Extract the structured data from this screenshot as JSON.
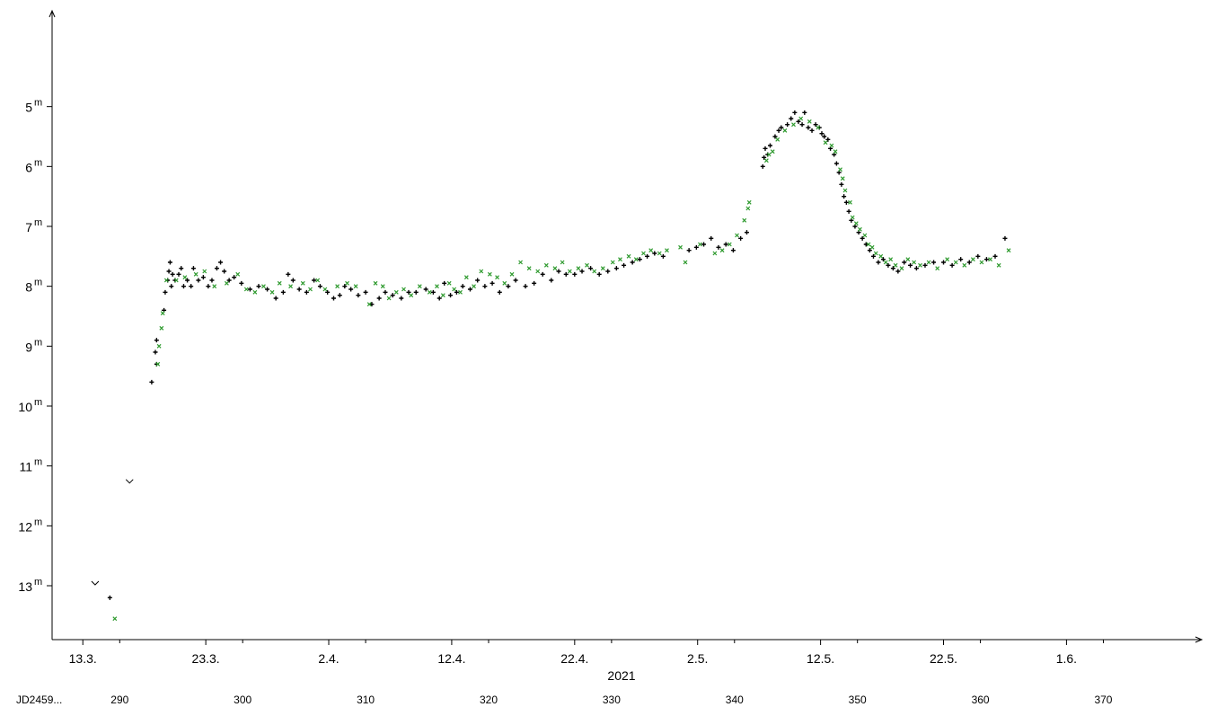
{
  "chart_data": {
    "type": "scatter",
    "title": "",
    "xlabel": "",
    "ylabel": "",
    "x_unit": "JD 2459xxx (day)",
    "x_range": [
      284.5,
      378.0
    ],
    "y_range_magnitude": [
      13.9,
      3.4
    ],
    "y_inverted": true,
    "grid": false,
    "year_label": "2021",
    "jd_prefix_label": "JD2459...",
    "date_ticks": [
      {
        "jd": 287,
        "label": "13.3."
      },
      {
        "jd": 297,
        "label": "23.3."
      },
      {
        "jd": 307,
        "label": "2.4."
      },
      {
        "jd": 317,
        "label": "12.4."
      },
      {
        "jd": 327,
        "label": "22.4."
      },
      {
        "jd": 337,
        "label": "2.5."
      },
      {
        "jd": 347,
        "label": "12.5."
      },
      {
        "jd": 357,
        "label": "22.5."
      },
      {
        "jd": 367,
        "label": "1.6."
      }
    ],
    "jd_ticks": [
      {
        "jd": 290,
        "label": "290"
      },
      {
        "jd": 300,
        "label": "300"
      },
      {
        "jd": 310,
        "label": "310"
      },
      {
        "jd": 320,
        "label": "320"
      },
      {
        "jd": 330,
        "label": "330"
      },
      {
        "jd": 340,
        "label": "340"
      },
      {
        "jd": 350,
        "label": "350"
      },
      {
        "jd": 360,
        "label": "360"
      },
      {
        "jd": 370,
        "label": "370"
      }
    ],
    "y_ticks": [
      {
        "mag": 5,
        "label": "5",
        "suffix": "m"
      },
      {
        "mag": 6,
        "label": "6",
        "suffix": "m"
      },
      {
        "mag": 7,
        "label": "7",
        "suffix": "m"
      },
      {
        "mag": 8,
        "label": "8",
        "suffix": "m"
      },
      {
        "mag": 9,
        "label": "9",
        "suffix": "m"
      },
      {
        "mag": 10,
        "label": "10",
        "suffix": "m"
      },
      {
        "mag": 11,
        "label": "11",
        "suffix": "m"
      },
      {
        "mag": 12,
        "label": "12",
        "suffix": "m"
      },
      {
        "mag": 13,
        "label": "13",
        "suffix": "m"
      }
    ],
    "colors": {
      "visual": "#000000",
      "other": "#2e9a2e"
    },
    "series": [
      {
        "marker": "v",
        "color": "#000000",
        "points": [
          [
            288.0,
            12.97
          ],
          [
            290.8,
            11.27
          ]
        ]
      },
      {
        "marker": "plus",
        "color": "#000000",
        "points": [
          [
            289.2,
            13.2
          ],
          [
            292.6,
            9.6
          ],
          [
            292.9,
            9.1
          ],
          [
            293.0,
            8.9
          ],
          [
            293.0,
            9.3
          ],
          [
            293.6,
            8.4
          ],
          [
            293.7,
            8.1
          ],
          [
            293.9,
            7.9
          ],
          [
            294.0,
            7.75
          ],
          [
            294.1,
            7.6
          ],
          [
            294.2,
            8.0
          ],
          [
            294.3,
            7.8
          ],
          [
            294.5,
            7.9
          ],
          [
            294.8,
            7.8
          ],
          [
            295.0,
            7.7
          ],
          [
            295.2,
            8.0
          ],
          [
            295.5,
            7.9
          ],
          [
            295.8,
            8.0
          ],
          [
            296.0,
            7.7
          ],
          [
            296.4,
            7.9
          ],
          [
            296.8,
            7.85
          ],
          [
            297.2,
            8.0
          ],
          [
            297.5,
            7.9
          ],
          [
            297.9,
            7.7
          ],
          [
            298.2,
            7.6
          ],
          [
            298.5,
            7.75
          ],
          [
            298.9,
            7.9
          ],
          [
            299.3,
            7.85
          ],
          [
            299.9,
            7.95
          ],
          [
            300.6,
            8.05
          ],
          [
            301.3,
            8.0
          ],
          [
            302.0,
            8.05
          ],
          [
            302.7,
            8.2
          ],
          [
            303.3,
            8.1
          ],
          [
            303.7,
            7.8
          ],
          [
            304.1,
            7.9
          ],
          [
            304.6,
            8.05
          ],
          [
            305.2,
            8.1
          ],
          [
            305.8,
            7.9
          ],
          [
            306.3,
            8.0
          ],
          [
            306.9,
            8.1
          ],
          [
            307.4,
            8.2
          ],
          [
            307.9,
            8.15
          ],
          [
            308.3,
            8.0
          ],
          [
            308.8,
            8.05
          ],
          [
            309.4,
            8.15
          ],
          [
            310.0,
            8.1
          ],
          [
            310.5,
            8.3
          ],
          [
            311.1,
            8.2
          ],
          [
            311.6,
            8.1
          ],
          [
            312.2,
            8.15
          ],
          [
            312.9,
            8.2
          ],
          [
            313.5,
            8.1
          ],
          [
            314.1,
            8.1
          ],
          [
            314.9,
            8.05
          ],
          [
            315.5,
            8.1
          ],
          [
            316.0,
            8.2
          ],
          [
            316.4,
            7.95
          ],
          [
            316.9,
            8.15
          ],
          [
            317.4,
            8.1
          ],
          [
            317.9,
            8.0
          ],
          [
            318.5,
            8.05
          ],
          [
            319.1,
            7.9
          ],
          [
            319.7,
            8.0
          ],
          [
            320.3,
            7.95
          ],
          [
            320.9,
            8.1
          ],
          [
            321.6,
            8.0
          ],
          [
            322.2,
            7.9
          ],
          [
            323.0,
            8.0
          ],
          [
            323.7,
            7.95
          ],
          [
            324.4,
            7.8
          ],
          [
            325.1,
            7.9
          ],
          [
            325.7,
            7.75
          ],
          [
            326.3,
            7.8
          ],
          [
            327.0,
            7.8
          ],
          [
            327.6,
            7.75
          ],
          [
            328.3,
            7.7
          ],
          [
            329.0,
            7.8
          ],
          [
            329.7,
            7.75
          ],
          [
            330.4,
            7.7
          ],
          [
            331.0,
            7.65
          ],
          [
            331.7,
            7.6
          ],
          [
            332.3,
            7.55
          ],
          [
            332.9,
            7.5
          ],
          [
            333.5,
            7.45
          ],
          [
            334.2,
            7.5
          ],
          [
            336.3,
            7.4
          ],
          [
            336.9,
            7.35
          ],
          [
            337.5,
            7.3
          ],
          [
            338.1,
            7.2
          ],
          [
            338.7,
            7.35
          ],
          [
            339.3,
            7.3
          ],
          [
            339.9,
            7.4
          ],
          [
            340.5,
            7.2
          ],
          [
            341.0,
            7.1
          ],
          [
            342.3,
            6.0
          ],
          [
            342.4,
            5.85
          ],
          [
            342.5,
            5.7
          ],
          [
            342.7,
            5.8
          ],
          [
            342.9,
            5.65
          ],
          [
            343.3,
            5.5
          ],
          [
            343.6,
            5.4
          ],
          [
            343.8,
            5.35
          ],
          [
            344.3,
            5.3
          ],
          [
            344.6,
            5.2
          ],
          [
            344.9,
            5.1
          ],
          [
            345.2,
            5.25
          ],
          [
            345.5,
            5.3
          ],
          [
            345.7,
            5.1
          ],
          [
            346.0,
            5.35
          ],
          [
            346.3,
            5.4
          ],
          [
            346.6,
            5.3
          ],
          [
            346.9,
            5.35
          ],
          [
            347.1,
            5.45
          ],
          [
            347.3,
            5.5
          ],
          [
            347.6,
            5.55
          ],
          [
            347.8,
            5.7
          ],
          [
            348.1,
            5.8
          ],
          [
            348.3,
            5.95
          ],
          [
            348.5,
            6.1
          ],
          [
            348.7,
            6.3
          ],
          [
            348.9,
            6.5
          ],
          [
            349.1,
            6.6
          ],
          [
            349.3,
            6.75
          ],
          [
            349.5,
            6.9
          ],
          [
            349.8,
            7.0
          ],
          [
            350.1,
            7.1
          ],
          [
            350.4,
            7.2
          ],
          [
            350.7,
            7.3
          ],
          [
            351.0,
            7.4
          ],
          [
            351.3,
            7.5
          ],
          [
            351.7,
            7.6
          ],
          [
            352.1,
            7.55
          ],
          [
            352.5,
            7.65
          ],
          [
            352.9,
            7.7
          ],
          [
            353.3,
            7.75
          ],
          [
            353.8,
            7.6
          ],
          [
            354.3,
            7.65
          ],
          [
            354.8,
            7.7
          ],
          [
            355.5,
            7.65
          ],
          [
            356.2,
            7.6
          ],
          [
            357.0,
            7.6
          ],
          [
            357.7,
            7.65
          ],
          [
            358.4,
            7.55
          ],
          [
            359.1,
            7.6
          ],
          [
            359.8,
            7.5
          ],
          [
            360.5,
            7.55
          ],
          [
            361.2,
            7.5
          ],
          [
            362.0,
            7.2
          ]
        ]
      },
      {
        "marker": "x",
        "color": "#2e9a2e",
        "points": [
          [
            289.6,
            13.55
          ],
          [
            293.1,
            9.3
          ],
          [
            293.2,
            9.0
          ],
          [
            293.4,
            8.7
          ],
          [
            293.5,
            8.45
          ],
          [
            293.8,
            7.9
          ],
          [
            294.6,
            7.9
          ],
          [
            295.3,
            7.85
          ],
          [
            296.2,
            7.8
          ],
          [
            296.9,
            7.75
          ],
          [
            297.7,
            8.0
          ],
          [
            298.7,
            7.95
          ],
          [
            299.6,
            7.8
          ],
          [
            300.3,
            8.05
          ],
          [
            301.0,
            8.1
          ],
          [
            301.7,
            8.0
          ],
          [
            302.4,
            8.1
          ],
          [
            303.0,
            7.95
          ],
          [
            303.9,
            8.0
          ],
          [
            304.9,
            7.95
          ],
          [
            305.5,
            8.05
          ],
          [
            306.1,
            7.9
          ],
          [
            306.7,
            8.05
          ],
          [
            307.7,
            8.0
          ],
          [
            308.5,
            7.95
          ],
          [
            309.2,
            8.0
          ],
          [
            310.3,
            8.3
          ],
          [
            310.8,
            7.95
          ],
          [
            311.4,
            8.0
          ],
          [
            311.9,
            8.2
          ],
          [
            312.5,
            8.1
          ],
          [
            313.1,
            8.05
          ],
          [
            313.7,
            8.15
          ],
          [
            314.4,
            8.0
          ],
          [
            315.2,
            8.1
          ],
          [
            315.8,
            8.0
          ],
          [
            316.3,
            8.15
          ],
          [
            316.8,
            7.95
          ],
          [
            317.2,
            8.05
          ],
          [
            317.7,
            8.1
          ],
          [
            318.2,
            7.85
          ],
          [
            318.8,
            8.0
          ],
          [
            319.4,
            7.75
          ],
          [
            320.1,
            7.8
          ],
          [
            320.7,
            7.85
          ],
          [
            321.3,
            7.95
          ],
          [
            321.9,
            7.8
          ],
          [
            322.6,
            7.6
          ],
          [
            323.3,
            7.7
          ],
          [
            324.0,
            7.75
          ],
          [
            324.7,
            7.65
          ],
          [
            325.4,
            7.7
          ],
          [
            326.0,
            7.6
          ],
          [
            326.6,
            7.75
          ],
          [
            327.3,
            7.7
          ],
          [
            328.0,
            7.65
          ],
          [
            328.6,
            7.75
          ],
          [
            329.3,
            7.7
          ],
          [
            330.1,
            7.6
          ],
          [
            330.7,
            7.55
          ],
          [
            331.4,
            7.5
          ],
          [
            332.0,
            7.55
          ],
          [
            332.6,
            7.45
          ],
          [
            333.2,
            7.4
          ],
          [
            333.9,
            7.45
          ],
          [
            334.5,
            7.4
          ],
          [
            335.6,
            7.35
          ],
          [
            336.0,
            7.6
          ],
          [
            337.2,
            7.3
          ],
          [
            338.4,
            7.45
          ],
          [
            339.0,
            7.4
          ],
          [
            339.6,
            7.3
          ],
          [
            340.2,
            7.15
          ],
          [
            340.8,
            6.9
          ],
          [
            341.1,
            6.7
          ],
          [
            341.2,
            6.6
          ],
          [
            342.6,
            5.9
          ],
          [
            342.8,
            5.8
          ],
          [
            343.1,
            5.75
          ],
          [
            343.5,
            5.55
          ],
          [
            344.1,
            5.4
          ],
          [
            344.8,
            5.3
          ],
          [
            345.4,
            5.2
          ],
          [
            346.1,
            5.25
          ],
          [
            346.8,
            5.35
          ],
          [
            347.4,
            5.6
          ],
          [
            347.9,
            5.65
          ],
          [
            348.2,
            5.75
          ],
          [
            348.6,
            6.05
          ],
          [
            348.8,
            6.2
          ],
          [
            349.0,
            6.4
          ],
          [
            349.4,
            6.6
          ],
          [
            349.6,
            6.85
          ],
          [
            349.9,
            6.95
          ],
          [
            350.2,
            7.05
          ],
          [
            350.6,
            7.15
          ],
          [
            350.9,
            7.3
          ],
          [
            351.2,
            7.35
          ],
          [
            351.5,
            7.45
          ],
          [
            351.9,
            7.5
          ],
          [
            352.3,
            7.6
          ],
          [
            352.7,
            7.55
          ],
          [
            353.1,
            7.65
          ],
          [
            353.6,
            7.7
          ],
          [
            354.1,
            7.55
          ],
          [
            354.6,
            7.6
          ],
          [
            355.1,
            7.65
          ],
          [
            355.8,
            7.6
          ],
          [
            356.5,
            7.7
          ],
          [
            357.3,
            7.55
          ],
          [
            358.0,
            7.6
          ],
          [
            358.7,
            7.65
          ],
          [
            359.4,
            7.55
          ],
          [
            360.1,
            7.6
          ],
          [
            360.8,
            7.55
          ],
          [
            361.5,
            7.65
          ],
          [
            362.3,
            7.4
          ]
        ]
      }
    ]
  }
}
